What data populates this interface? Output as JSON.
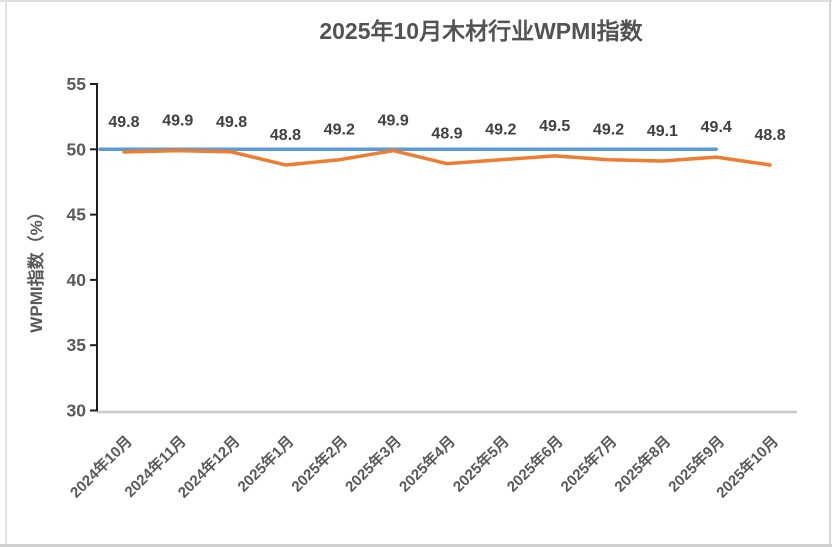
{
  "page": {
    "background": "#ffffff",
    "frame_border_color": "#d9d9d9"
  },
  "chart_data": {
    "type": "line",
    "title": "2025年10月木材行业WPMI指数",
    "xlabel": "",
    "ylabel": "WPMI指数（%）",
    "ylim": [
      30,
      55
    ],
    "yticks": [
      30,
      35,
      40,
      45,
      50,
      55
    ],
    "grid": false,
    "legend": "none",
    "categories": [
      "2024年10月",
      "2024年11月",
      "2024年12月",
      "2025年1月",
      "2025年2月",
      "2025年3月",
      "2025年4月",
      "2025年5月",
      "2025年6月",
      "2025年7月",
      "2025年8月",
      "2025年9月",
      "2025年10月"
    ],
    "series": [
      {
        "name": "WPMI指数",
        "color": "#ED7D31",
        "show_labels": true,
        "extend_to_axis": false,
        "values": [
          49.8,
          49.9,
          49.8,
          48.8,
          49.2,
          49.9,
          48.9,
          49.2,
          49.5,
          49.2,
          49.1,
          49.4,
          48.8
        ]
      },
      {
        "name": "荣枯线50",
        "color": "#5B9BD5",
        "show_labels": false,
        "extend_to_axis": true,
        "values": [
          50,
          50,
          50,
          50,
          50,
          50,
          50,
          50,
          50,
          50,
          50,
          50,
          null
        ]
      }
    ],
    "colors": {
      "data_label": "#404040",
      "axis_text": "#595959",
      "title": "#535353",
      "yaxis_line": "#1f1f1f",
      "xaxis_line": "#c9c9c9"
    }
  }
}
